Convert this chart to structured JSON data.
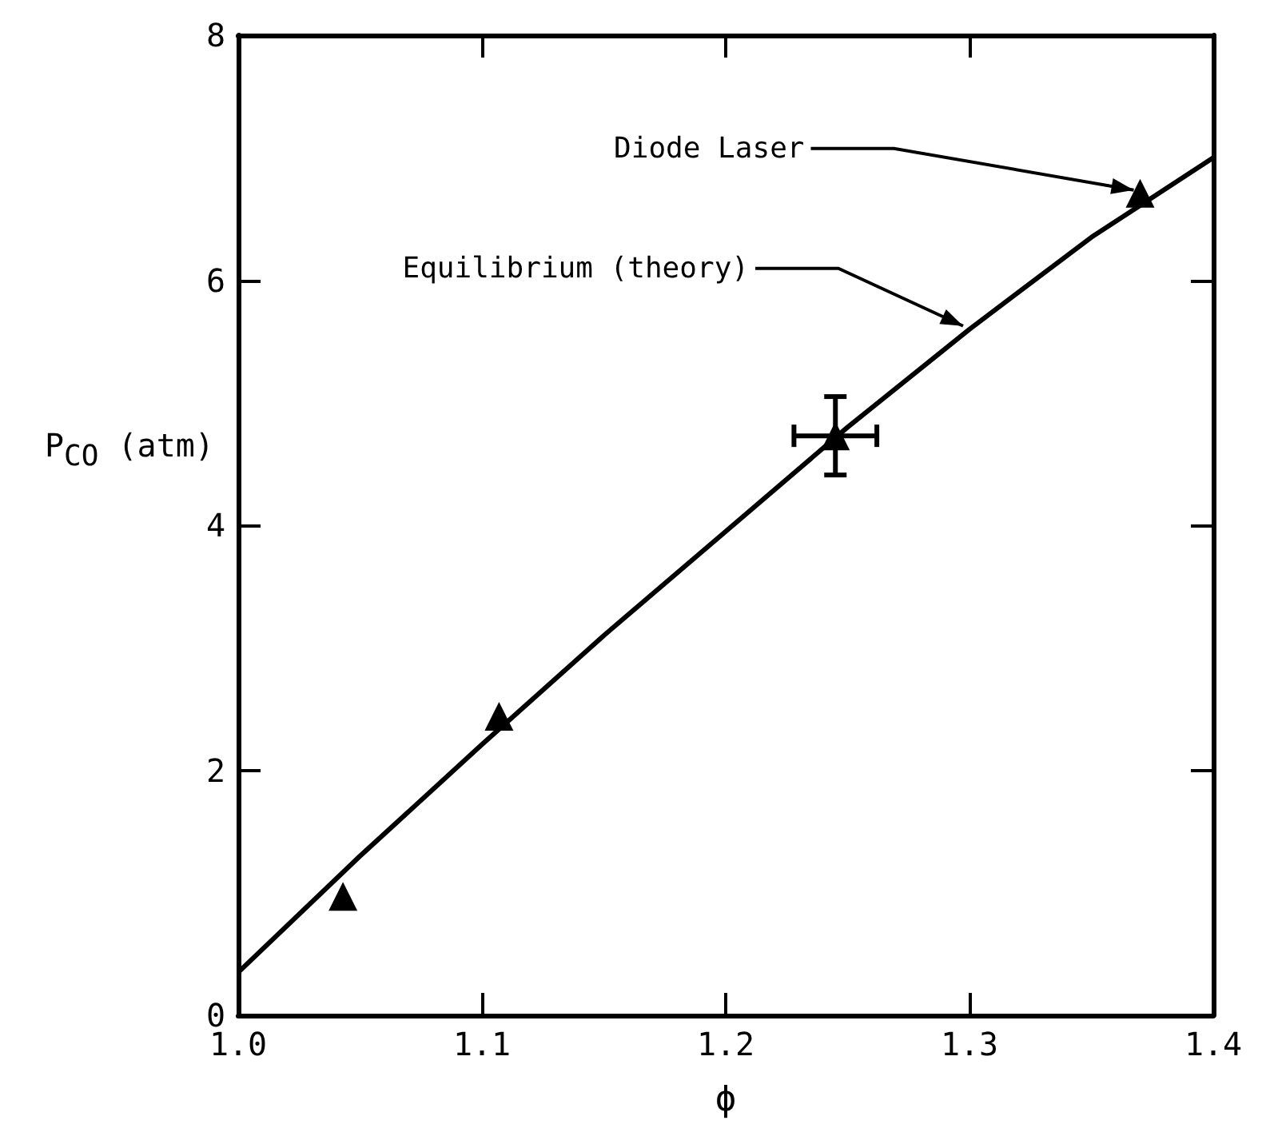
{
  "chart_data": {
    "type": "scatter",
    "xlabel": "ϕ",
    "ylabel": "P$_{CO}$ (atm)",
    "xlim": [
      1.0,
      1.4
    ],
    "ylim": [
      0,
      8
    ],
    "xticks": [
      {
        "value": 1.0,
        "label": "1.0"
      },
      1.1,
      1.2,
      1.3,
      1.4
    ],
    "yticks": [
      0,
      2,
      4,
      6,
      8
    ],
    "grid": false,
    "marker": "triangle",
    "series": [
      {
        "type": "line",
        "color": "#000000",
        "marker": "none",
        "line_style": "solid",
        "x": [
          1.0,
          1.05,
          1.1,
          1.15,
          1.2,
          1.25,
          1.3,
          1.35,
          1.4
        ],
        "values": [
          0.35,
          1.3,
          2.21,
          3.1,
          3.95,
          4.8,
          5.6,
          6.35,
          7.0
        ]
      },
      {
        "color": "#000000",
        "x": [
          1.043,
          1.107,
          1.245,
          1.37
        ],
        "values": [
          0.97,
          2.44,
          4.73,
          6.71
        ],
        "errors": [
          null,
          null,
          0.32,
          null
        ],
        "xerrors": [
          null,
          null,
          0.017,
          null
        ]
      }
    ],
    "annotations": [
      {
        "text": "Diode Laser",
        "x": 1.37,
        "y": 6.71
      },
      {
        "text": "Equilibrium (theory)",
        "x": 1.3,
        "y": 5.6
      }
    ]
  }
}
